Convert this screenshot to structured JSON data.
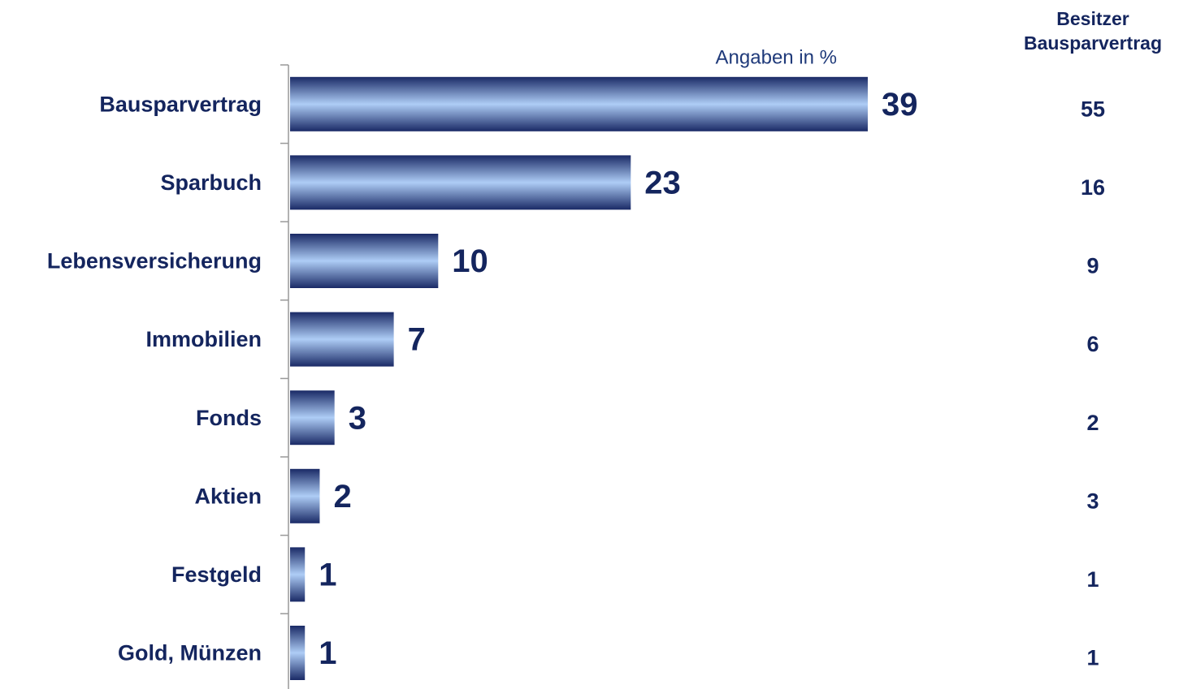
{
  "chart_data": {
    "type": "bar",
    "orientation": "horizontal",
    "subtitle": "Angaben in %",
    "categories": [
      "Bausparvertrag",
      "Sparbuch",
      "Lebensversicherung",
      "Immobilien",
      "Fonds",
      "Aktien",
      "Festgeld",
      "Gold, Münzen"
    ],
    "values": [
      39,
      23,
      10,
      7,
      3,
      2,
      1,
      1
    ],
    "color": "#1a2a66",
    "owners": {
      "title": "Besitzer Bausparvertrag",
      "values": [
        55,
        16,
        9,
        6,
        2,
        3,
        1,
        1
      ]
    }
  }
}
